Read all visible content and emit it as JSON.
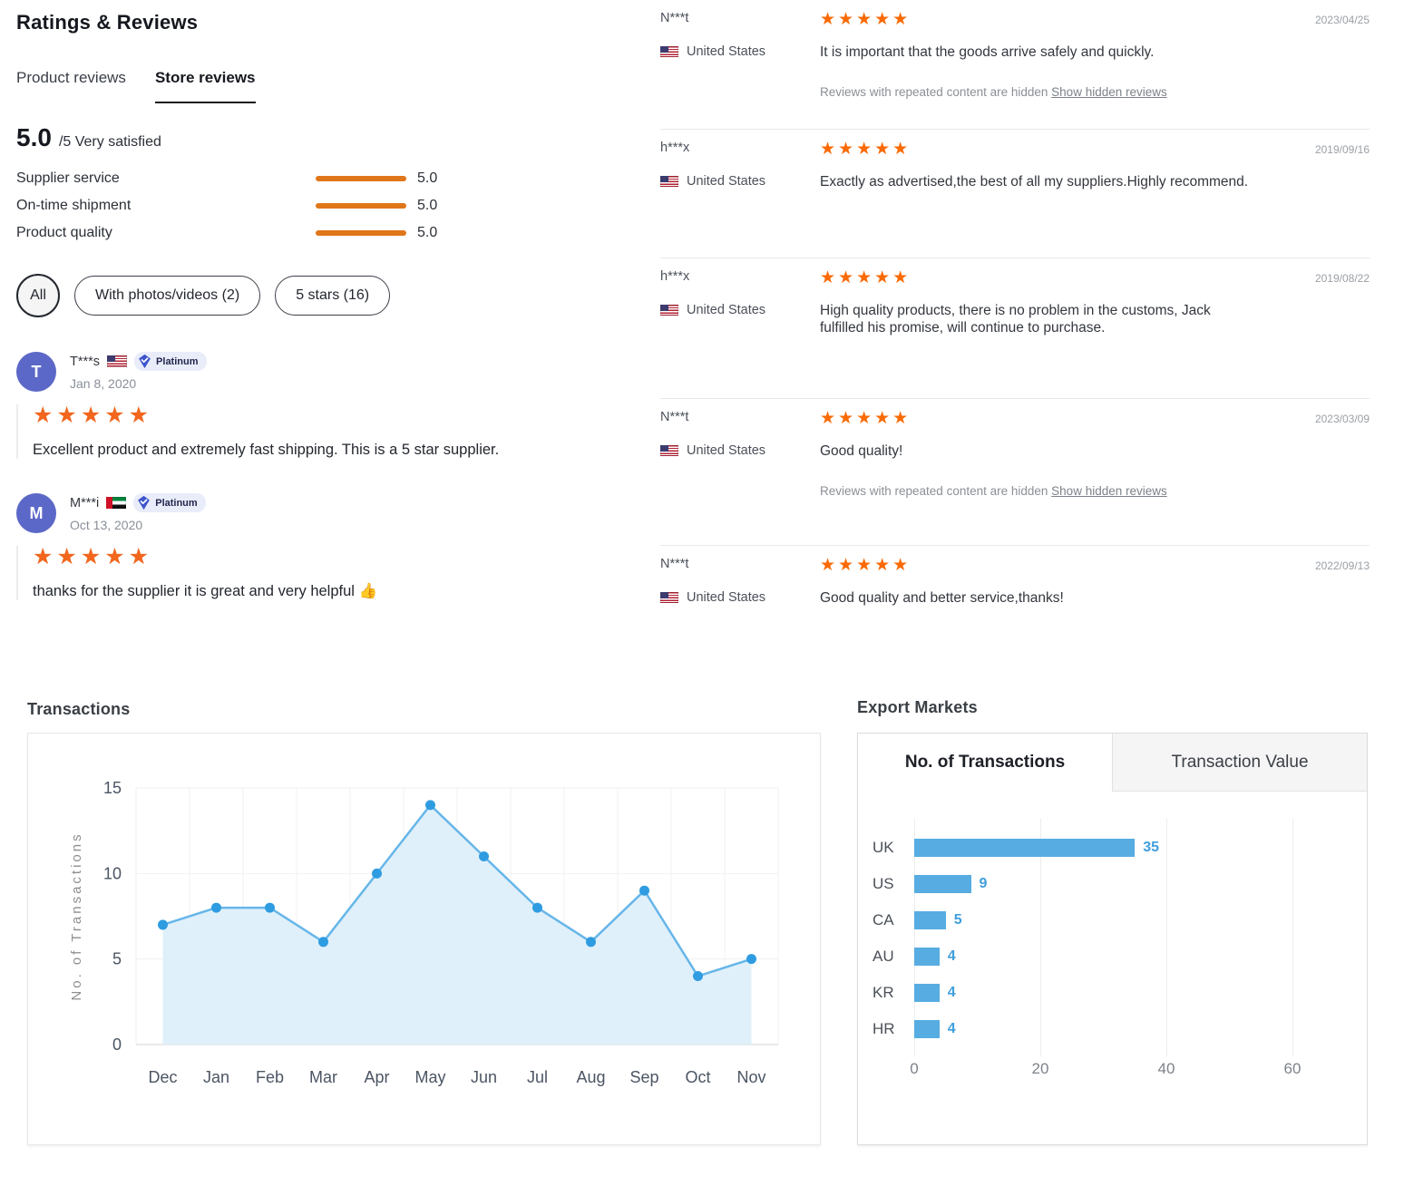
{
  "header": {
    "title": "Ratings & Reviews"
  },
  "tabs": [
    {
      "label": "Product reviews",
      "active": false
    },
    {
      "label": "Store reviews",
      "active": true
    }
  ],
  "summary": {
    "score": "5.0",
    "suffix": "/5 Very satisfied",
    "bar_color": "#e0761a",
    "metrics": [
      {
        "label": "Supplier service",
        "value": "5.0"
      },
      {
        "label": "On-time shipment",
        "value": "5.0"
      },
      {
        "label": "Product quality",
        "value": "5.0"
      }
    ]
  },
  "filters": [
    {
      "label": "All",
      "selected": true
    },
    {
      "label": "With photos/videos (2)",
      "selected": false
    },
    {
      "label": "5 stars (16)",
      "selected": false
    }
  ],
  "left_reviews": [
    {
      "initial": "T",
      "name": "T***s",
      "flag": "us",
      "badge": "Platinum",
      "date": "Jan 8, 2020",
      "stars": 5,
      "text": "Excellent product and extremely fast shipping. This is a 5 star supplier."
    },
    {
      "initial": "M",
      "name": "M***i",
      "flag": "ae",
      "badge": "Platinum",
      "date": "Oct 13, 2020",
      "stars": 5,
      "text": "thanks for the supplier it is great and very helpful 👍"
    }
  ],
  "right_reviews": [
    {
      "name": "N***t",
      "country": "United States",
      "flag": "us",
      "date": "2023/04/25",
      "stars": 5,
      "text": "It is important that the goods arrive safely and quickly.",
      "hidden_note": "Reviews with repeated content are hidden",
      "hidden_link": "Show hidden reviews"
    },
    {
      "name": "h***x",
      "country": "United States",
      "flag": "us",
      "date": "2019/09/16",
      "stars": 5,
      "text": "Exactly as advertised,the best of all my suppliers.Highly recommend."
    },
    {
      "name": "h***x",
      "country": "United States",
      "flag": "us",
      "date": "2019/08/22",
      "stars": 5,
      "text": "High quality products, there is no problem in the customs, Jack fulfilled his promise, will continue to purchase."
    },
    {
      "name": "N***t",
      "country": "United States",
      "flag": "us",
      "date": "2023/03/09",
      "stars": 5,
      "text": "Good quality!",
      "hidden_note": "Reviews with repeated content are hidden",
      "hidden_link": "Show hidden reviews"
    },
    {
      "name": "N***t",
      "country": "United States",
      "flag": "us",
      "date": "2022/09/13",
      "stars": 5,
      "text": "Good quality and better service,thanks!"
    }
  ],
  "chart_data": [
    {
      "type": "area",
      "title": "Transactions",
      "ylabel": "No. of Transactions",
      "x": [
        "Dec",
        "Jan",
        "Feb",
        "Mar",
        "Apr",
        "May",
        "Jun",
        "Jul",
        "Aug",
        "Sep",
        "Oct",
        "Nov"
      ],
      "values": [
        7,
        8,
        8,
        6,
        10,
        14,
        11,
        8,
        6,
        9,
        4,
        5
      ],
      "ylim": [
        0,
        15
      ],
      "yticks": [
        0,
        5,
        10,
        15
      ],
      "grid": true,
      "line_color": "#66b6e9",
      "fill_color": "#ddeef9",
      "marker_color": "#2f9ce1"
    },
    {
      "type": "bar",
      "title": "Export Markets",
      "tabs": [
        "No. of Transactions",
        "Transaction Value"
      ],
      "active_tab": "No. of Transactions",
      "categories": [
        "UK",
        "US",
        "CA",
        "AU",
        "KR",
        "HR"
      ],
      "values": [
        35,
        9,
        5,
        4,
        4,
        4
      ],
      "xlim": [
        0,
        60
      ],
      "xticks": [
        0,
        20,
        40,
        60
      ],
      "grid": true,
      "bar_color": "#57ace1",
      "value_label_color": "#3f9fdc"
    }
  ]
}
